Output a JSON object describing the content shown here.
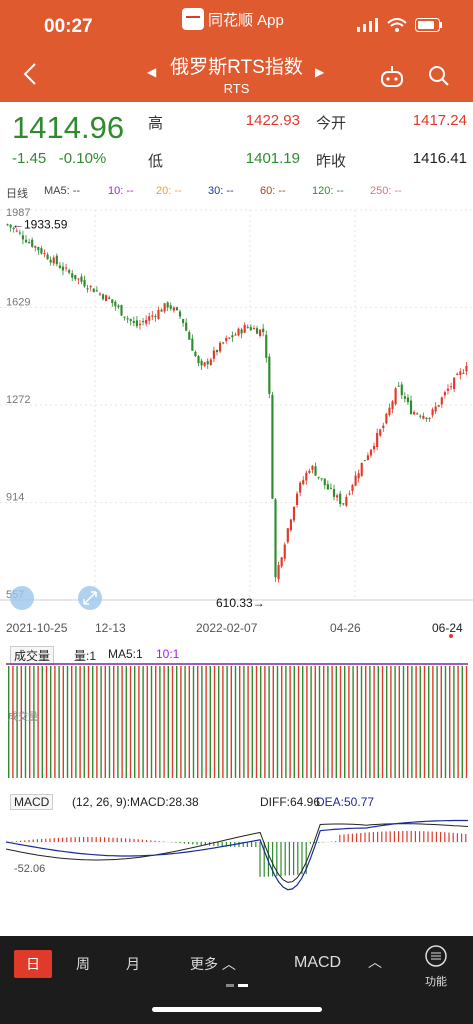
{
  "status_bar": {
    "time": "00:27",
    "app_name": "同花顺 App"
  },
  "nav": {
    "title": "俄罗斯RTS指数",
    "subtitle": "RTS"
  },
  "quote": {
    "price": "1414.96",
    "change": "-1.45",
    "change_pct": "-0.10%",
    "high_label": "高",
    "high": "1422.93",
    "open_label": "今开",
    "open": "1417.24",
    "low_label": "低",
    "low": "1401.19",
    "prev_close_label": "昨收",
    "prev_close": "1416.41"
  },
  "ma_bar": {
    "period": "日线",
    "ma5": "MA5: --",
    "ma10": "10: --",
    "ma20": "20: --",
    "ma30": "30: --",
    "ma60": "60: --",
    "ma120": "120: --",
    "ma250": "250: --"
  },
  "chart": {
    "y_ticks": [
      "1987",
      "1629",
      "1272",
      "914",
      "557"
    ],
    "x_ticks": [
      "2021-10-25",
      "12-13",
      "2022-02-07",
      "04-26",
      "06-24"
    ],
    "max_label": "←1933.59",
    "min_label": "610.33→"
  },
  "volume": {
    "selector": "成交量",
    "vol": "量:1",
    "ma5": "MA5:1",
    "ma10": "10:1",
    "axis_label": "成交量"
  },
  "macd": {
    "selector": "MACD",
    "params": "(12, 26, 9):MACD:28.38",
    "diff": "DIFF:64.96",
    "dea": "DEA:50.77",
    "min_label": "-52.06"
  },
  "bottom": {
    "day": "日",
    "week": "周",
    "month": "月",
    "more": "更多",
    "indicator": "MACD",
    "function": "功能"
  },
  "colors": {
    "up": "#e03a2a",
    "down": "#2e8b2e",
    "brand": "#e05a30"
  },
  "chart_data": {
    "type": "line",
    "x": [
      "2021-10-25",
      "2021-12-13",
      "2022-02-07",
      "2022-03-01",
      "2022-04-26",
      "2022-06-24"
    ],
    "series": [
      {
        "values": [
          1933.59,
          1680,
          1560,
          610.33,
          950,
          1414.96
        ]
      }
    ],
    "ylim": [
      557,
      1987
    ]
  }
}
